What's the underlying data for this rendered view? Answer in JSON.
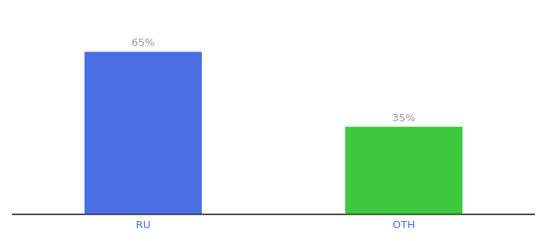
{
  "chart_data": {
    "type": "bar",
    "categories": [
      "RU",
      "OTH"
    ],
    "values": [
      65,
      35
    ],
    "value_labels": [
      "65%",
      "35%"
    ],
    "data_labels": true,
    "colors": [
      "#4a6fe3",
      "#3dc93d"
    ],
    "ylim": [
      0,
      78
    ],
    "tick_labels": "x",
    "grid": false
  }
}
